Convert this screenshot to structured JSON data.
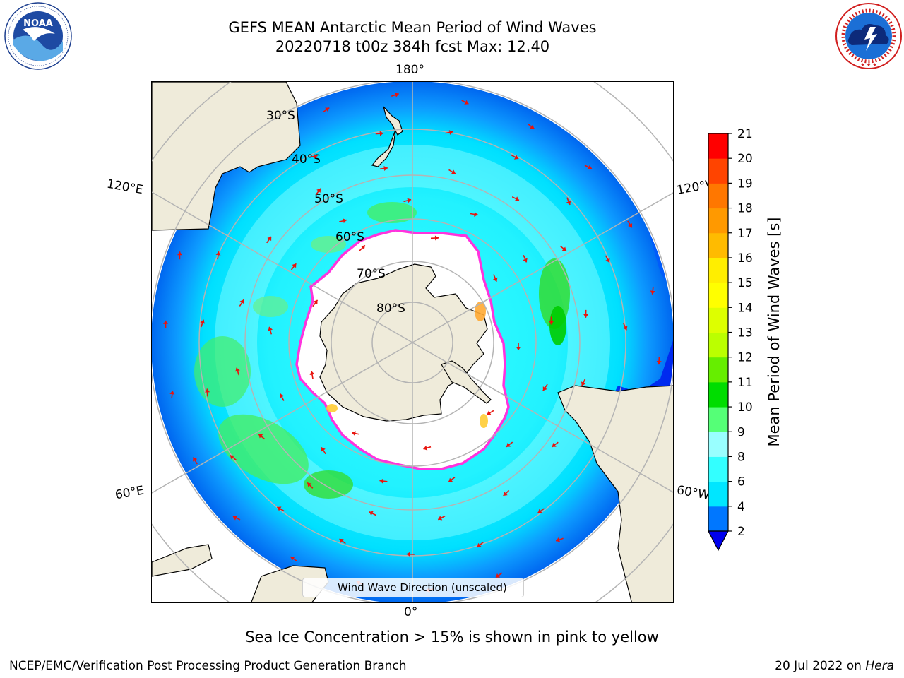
{
  "title": {
    "line1": "GEFS MEAN Antarctic Mean Period of Wind Waves",
    "line2": "20220718 t00z 384h fcst   Max: 12.40"
  },
  "logos": {
    "left": {
      "name": "noaa-logo",
      "text": "NOAA",
      "ring_text": "NATIONAL OCEANIC AND ATMOSPHERIC ADMINISTRATION · U.S. DEPARTMENT OF COMMERCE"
    },
    "right": {
      "name": "nws-logo",
      "ring_text": "NATIONAL WEATHER SERVICE"
    }
  },
  "map": {
    "projection": "south-polar-stereographic",
    "longitude_labels": {
      "top": "180°",
      "bottom": "0°",
      "upper_left": "120°E",
      "upper_right": "120°W",
      "lower_left": "60°E",
      "lower_right": "60°W"
    },
    "latitude_labels": [
      "30°S",
      "40°S",
      "50°S",
      "60°S",
      "70°S",
      "80°S"
    ],
    "sea_ice_note": "Sea Ice Concentration > 15% is shown in pink to yellow",
    "colors": {
      "land": "#efebda",
      "coast": "#000000",
      "grid": "#b4b4b4",
      "arrow": "#e8140e",
      "ice_edge": "#ff33dd",
      "ice_interior": "#ffffff",
      "ice_yellow": "#ffcc33"
    },
    "legend": {
      "label": "Wind Wave Direction (unscaled)"
    }
  },
  "colorbar": {
    "label": "Mean Period of Wind Waves [s]",
    "ticks": [
      "2",
      "4",
      "6",
      "8",
      "9",
      "10",
      "11",
      "12",
      "13",
      "14",
      "15",
      "16",
      "17",
      "18",
      "19",
      "20",
      "21"
    ],
    "colors": [
      "#0077ff",
      "#00e6ff",
      "#33ffff",
      "#99ffff",
      "#55ff77",
      "#00dd00",
      "#66ee00",
      "#bbff00",
      "#ddff00",
      "#ffff00",
      "#ffee00",
      "#ffbb00",
      "#ff9900",
      "#ff7700",
      "#ff4400",
      "#ff0000"
    ],
    "under_color": "#0000ee"
  },
  "footer": {
    "left": "NCEP/EMC/Verification Post Processing Product Generation Branch",
    "right_date": "20 Jul 2022 on ",
    "right_machine": "Hera"
  }
}
